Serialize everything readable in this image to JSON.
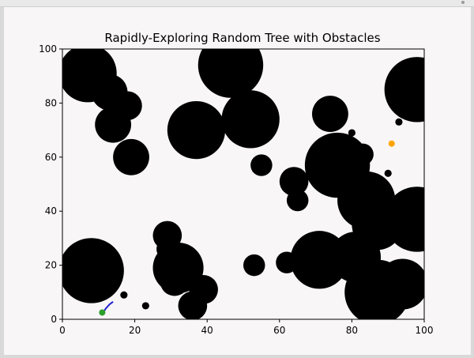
{
  "chart_data": {
    "type": "scatter",
    "title": "Rapidly-Exploring Random Tree with Obstacles",
    "xlabel": "",
    "ylabel": "",
    "xlim": [
      0,
      100
    ],
    "ylim": [
      0,
      100
    ],
    "xticks": [
      0,
      20,
      40,
      60,
      80,
      100
    ],
    "yticks": [
      0,
      20,
      40,
      60,
      80,
      100
    ],
    "grid": false,
    "obstacle_color": "#000000",
    "obstacles": [
      {
        "x": 7,
        "y": 91,
        "r": 8
      },
      {
        "x": 13,
        "y": 84,
        "r": 5
      },
      {
        "x": 18,
        "y": 79,
        "r": 4
      },
      {
        "x": 14,
        "y": 72,
        "r": 5
      },
      {
        "x": 19,
        "y": 60,
        "r": 5
      },
      {
        "x": 46.5,
        "y": 94,
        "r": 9
      },
      {
        "x": 37,
        "y": 70,
        "r": 8
      },
      {
        "x": 52,
        "y": 74,
        "r": 8
      },
      {
        "x": 55,
        "y": 57,
        "r": 3
      },
      {
        "x": 74,
        "y": 76,
        "r": 5
      },
      {
        "x": 98,
        "y": 85,
        "r": 9
      },
      {
        "x": 76,
        "y": 57,
        "r": 9
      },
      {
        "x": 83,
        "y": 61,
        "r": 3
      },
      {
        "x": 64,
        "y": 51,
        "r": 4
      },
      {
        "x": 65,
        "y": 44,
        "r": 3
      },
      {
        "x": 84,
        "y": 44,
        "r": 8
      },
      {
        "x": 87,
        "y": 35,
        "r": 7
      },
      {
        "x": 98,
        "y": 37,
        "r": 9
      },
      {
        "x": 8,
        "y": 18,
        "r": 9
      },
      {
        "x": 29,
        "y": 31,
        "r": 4
      },
      {
        "x": 29,
        "y": 26,
        "r": 3
      },
      {
        "x": 32,
        "y": 19,
        "r": 7
      },
      {
        "x": 31,
        "y": 14,
        "r": 4
      },
      {
        "x": 39,
        "y": 11,
        "r": 4
      },
      {
        "x": 36,
        "y": 5,
        "r": 4
      },
      {
        "x": 53,
        "y": 20,
        "r": 3
      },
      {
        "x": 62,
        "y": 21,
        "r": 3
      },
      {
        "x": 71,
        "y": 22,
        "r": 8
      },
      {
        "x": 81,
        "y": 23,
        "r": 7
      },
      {
        "x": 94,
        "y": 13,
        "r": 7
      },
      {
        "x": 87,
        "y": 10,
        "r": 9
      },
      {
        "x": 17,
        "y": 9,
        "r": 1
      },
      {
        "x": 23,
        "y": 5,
        "r": 1
      },
      {
        "x": 80,
        "y": 69,
        "r": 1
      },
      {
        "x": 93,
        "y": 73,
        "r": 1
      },
      {
        "x": 90,
        "y": 54,
        "r": 1
      }
    ],
    "path": {
      "color": "#1f1fcf",
      "points": [
        [
          11,
          2
        ],
        [
          12,
          4
        ],
        [
          13,
          5.5
        ],
        [
          14,
          6.5
        ]
      ]
    },
    "start": {
      "x": 11,
      "y": 2.5,
      "color": "#2ca02c"
    },
    "goal": {
      "x": 91,
      "y": 65,
      "color": "#ffa500"
    }
  }
}
